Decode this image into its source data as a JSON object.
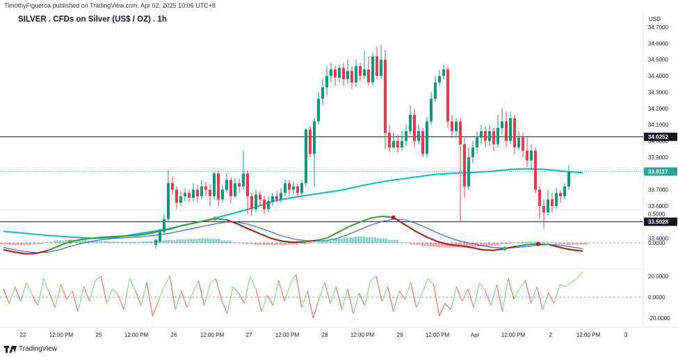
{
  "publisher_line": "TimothyFigueroa published on TradingView.com, Apr 02, 2025 10:06 UTC+8",
  "symbol_title": "SILVER . CFDs on Silver (US$ / OZ) . 1h",
  "brand": "TradingView",
  "colors": {
    "up": "#26a69a",
    "down": "#ef5350",
    "upCandle": "#089981",
    "downCandle": "#f23645",
    "ma": "#00bcd4",
    "macd_fast": "#2f9e2f",
    "macd_signal": "#b71c1c",
    "blue": "#2962ff",
    "osc_up": "#66dd66",
    "osc_down": "#ef5350"
  },
  "chart_data": [
    {
      "type": "candlestick",
      "title": "SILVER . CFDs on Silver (US$ / OZ) . 1h",
      "currency_label": "USD",
      "y_ticks": [
        "34.7000",
        "34.6000",
        "34.5000",
        "34.4000",
        "34.3000",
        "34.2000",
        "34.1000",
        "34.0000",
        "33.9000",
        "33.8000",
        "33.7000",
        "33.6000",
        "33.5000",
        "33.4000"
      ],
      "ylim": [
        33.37,
        34.74
      ],
      "x_ticks": [
        "22",
        "12:00 PM",
        "25",
        "12:00 PM",
        "26",
        "12:00 PM",
        "27",
        "12:00 PM",
        "28",
        "12:00 PM",
        "29",
        "12:00 PM",
        "Apr",
        "12:00 PM",
        "2",
        "12:00 PM",
        "3"
      ],
      "horizontal_lines": [
        {
          "value": 34.0252,
          "label": "34.0252",
          "style": "solid"
        },
        {
          "value": 33.5028,
          "label": "33.5028",
          "style": "solid"
        },
        {
          "value": 33.8117,
          "label": "33.8117",
          "style": "dotted"
        }
      ],
      "candles": [
        [
          33.36,
          33.39,
          33.34,
          33.4
        ],
        [
          33.38,
          33.44,
          33.37,
          33.46
        ],
        [
          33.44,
          33.52,
          33.43,
          33.55
        ],
        [
          33.52,
          33.74,
          33.5,
          33.82
        ],
        [
          33.74,
          33.7,
          33.67,
          33.78
        ],
        [
          33.7,
          33.62,
          33.58,
          33.72
        ],
        [
          33.62,
          33.66,
          33.6,
          33.69
        ],
        [
          33.66,
          33.68,
          33.63,
          33.71
        ],
        [
          33.68,
          33.65,
          33.62,
          33.7
        ],
        [
          33.65,
          33.7,
          33.63,
          33.74
        ],
        [
          33.7,
          33.66,
          33.62,
          33.73
        ],
        [
          33.66,
          33.72,
          33.64,
          33.76
        ],
        [
          33.72,
          33.7,
          33.66,
          33.75
        ],
        [
          33.7,
          33.66,
          33.6,
          33.73
        ],
        [
          33.66,
          33.8,
          33.64,
          33.81
        ],
        [
          33.8,
          33.64,
          33.6,
          33.82
        ],
        [
          33.64,
          33.7,
          33.62,
          33.73
        ],
        [
          33.7,
          33.76,
          33.68,
          33.8
        ],
        [
          33.76,
          33.66,
          33.62,
          33.78
        ],
        [
          33.66,
          33.74,
          33.65,
          33.77
        ],
        [
          33.74,
          33.72,
          33.68,
          33.77
        ],
        [
          33.72,
          33.8,
          33.7,
          33.94
        ],
        [
          33.8,
          33.66,
          33.55,
          33.82
        ],
        [
          33.66,
          33.58,
          33.54,
          33.68
        ],
        [
          33.58,
          33.67,
          33.56,
          33.7
        ],
        [
          33.67,
          33.64,
          33.6,
          33.69
        ],
        [
          33.64,
          33.58,
          33.55,
          33.66
        ],
        [
          33.58,
          33.63,
          33.56,
          33.66
        ],
        [
          33.63,
          33.66,
          33.6,
          33.68
        ],
        [
          33.66,
          33.64,
          33.62,
          33.69
        ],
        [
          33.64,
          33.68,
          33.62,
          33.71
        ],
        [
          33.68,
          33.74,
          33.66,
          33.76
        ],
        [
          33.74,
          33.7,
          33.66,
          33.76
        ],
        [
          33.7,
          33.72,
          33.67,
          33.75
        ],
        [
          33.72,
          33.68,
          33.65,
          33.74
        ],
        [
          33.68,
          33.74,
          33.66,
          33.76
        ],
        [
          33.74,
          34.07,
          33.72,
          34.08
        ],
        [
          34.07,
          33.92,
          33.9,
          34.09
        ],
        [
          33.92,
          34.12,
          33.72,
          34.14
        ],
        [
          34.12,
          34.26,
          34.1,
          34.3
        ],
        [
          34.26,
          34.33,
          34.22,
          34.38
        ],
        [
          34.33,
          34.4,
          34.28,
          34.46
        ],
        [
          34.4,
          34.44,
          34.36,
          34.48
        ],
        [
          34.44,
          34.39,
          34.34,
          34.46
        ],
        [
          34.39,
          34.45,
          34.36,
          34.47
        ],
        [
          34.45,
          34.38,
          34.34,
          34.48
        ],
        [
          34.38,
          34.43,
          34.35,
          34.5
        ],
        [
          34.43,
          34.36,
          34.32,
          34.46
        ],
        [
          34.36,
          34.46,
          34.33,
          34.5
        ],
        [
          34.46,
          34.4,
          34.37,
          34.48
        ],
        [
          34.4,
          34.44,
          34.38,
          34.56
        ],
        [
          34.44,
          34.36,
          34.34,
          34.52
        ],
        [
          34.36,
          34.52,
          34.34,
          34.54
        ],
        [
          34.52,
          34.4,
          34.38,
          34.58
        ],
        [
          34.4,
          34.5,
          34.38,
          34.59
        ],
        [
          34.5,
          34.05,
          33.95,
          34.56
        ],
        [
          34.05,
          33.96,
          33.93,
          34.1
        ],
        [
          33.96,
          34.0,
          33.95,
          34.05
        ],
        [
          34.0,
          33.96,
          33.93,
          34.04
        ],
        [
          33.96,
          34.0,
          33.94,
          34.06
        ],
        [
          34.0,
          34.06,
          33.97,
          34.1
        ],
        [
          34.06,
          34.16,
          34.04,
          34.22
        ],
        [
          34.16,
          34.0,
          33.96,
          34.2
        ],
        [
          34.0,
          34.06,
          33.98,
          34.1
        ],
        [
          34.06,
          33.92,
          33.9,
          34.08
        ],
        [
          33.92,
          34.12,
          33.9,
          34.15
        ],
        [
          34.12,
          34.26,
          34.1,
          34.3
        ],
        [
          34.26,
          34.36,
          34.24,
          34.4
        ],
        [
          34.36,
          34.4,
          34.34,
          34.44
        ],
        [
          34.4,
          34.44,
          34.38,
          34.47
        ],
        [
          34.44,
          34.12,
          34.08,
          34.46
        ],
        [
          34.12,
          34.06,
          34.02,
          34.16
        ],
        [
          34.06,
          34.12,
          34.03,
          34.14
        ],
        [
          34.12,
          33.98,
          33.5,
          34.14
        ],
        [
          33.98,
          33.72,
          33.65,
          34.02
        ],
        [
          33.72,
          33.9,
          33.7,
          33.96
        ],
        [
          33.9,
          33.96,
          33.86,
          34.0
        ],
        [
          33.96,
          34.02,
          33.92,
          34.06
        ],
        [
          34.02,
          34.06,
          33.98,
          34.1
        ],
        [
          34.06,
          34.0,
          33.96,
          34.09
        ],
        [
          34.0,
          34.06,
          33.97,
          34.1
        ],
        [
          34.06,
          33.98,
          33.94,
          34.08
        ],
        [
          33.98,
          34.08,
          33.96,
          34.16
        ],
        [
          34.08,
          34.12,
          34.04,
          34.2
        ],
        [
          34.12,
          34.0,
          33.96,
          34.18
        ],
        [
          34.0,
          34.14,
          33.98,
          34.18
        ],
        [
          34.14,
          33.96,
          33.92,
          34.16
        ],
        [
          33.96,
          34.02,
          33.94,
          34.06
        ],
        [
          34.02,
          33.94,
          33.9,
          34.05
        ],
        [
          33.94,
          33.88,
          33.84,
          34.02
        ],
        [
          33.88,
          33.94,
          33.82,
          33.98
        ],
        [
          33.94,
          33.7,
          33.68,
          33.96
        ],
        [
          33.7,
          33.6,
          33.52,
          33.72
        ],
        [
          33.6,
          33.56,
          33.46,
          33.64
        ],
        [
          33.56,
          33.64,
          33.54,
          33.7
        ],
        [
          33.64,
          33.6,
          33.56,
          33.68
        ],
        [
          33.6,
          33.68,
          33.58,
          33.71
        ],
        [
          33.68,
          33.66,
          33.62,
          33.7
        ],
        [
          33.66,
          33.72,
          33.64,
          33.74
        ],
        [
          33.72,
          33.81,
          33.7,
          33.85
        ]
      ],
      "ma": [
        [
          0,
          33.444
        ],
        [
          10,
          33.418
        ],
        [
          20,
          33.4
        ],
        [
          25,
          33.408
        ],
        [
          30,
          33.43
        ],
        [
          36,
          33.457
        ],
        [
          40,
          33.482
        ],
        [
          45,
          33.512
        ],
        [
          50,
          33.549
        ],
        [
          55,
          33.587
        ],
        [
          60,
          33.632
        ],
        [
          65,
          33.657
        ],
        [
          70,
          33.678
        ],
        [
          75,
          33.699
        ],
        [
          80,
          33.73
        ],
        [
          85,
          33.755
        ],
        [
          90,
          33.774
        ],
        [
          95,
          33.793
        ],
        [
          100,
          33.802
        ],
        [
          104,
          33.806
        ],
        [
          108,
          33.814
        ],
        [
          112,
          33.825
        ],
        [
          116,
          33.829
        ],
        [
          120,
          33.824
        ],
        [
          124,
          33.813
        ],
        [
          128,
          33.804
        ]
      ]
    },
    {
      "type": "macd",
      "y_ticks": [
        "0.5000",
        "0.0000"
      ],
      "ylim": [
        -0.25,
        0.55
      ],
      "fast": [
        -0.12,
        -0.16,
        -0.19,
        -0.18,
        -0.13,
        -0.05,
        0.02,
        0.06,
        0.08,
        0.1,
        0.11,
        0.12,
        0.13,
        0.16,
        0.2,
        0.24,
        0.3,
        0.34,
        0.38,
        0.42,
        0.4,
        0.33,
        0.24,
        0.16,
        0.08,
        0.03,
        0.01,
        0.02,
        0.04,
        0.08,
        0.18,
        0.28,
        0.36,
        0.43,
        0.46,
        0.44,
        0.32,
        0.2,
        0.1,
        0.02,
        -0.03,
        -0.05,
        -0.08,
        -0.12,
        -0.13,
        -0.1,
        -0.06,
        -0.03,
        -0.02,
        -0.03,
        -0.08,
        -0.12,
        -0.14
      ],
      "signal": [
        -0.08,
        -0.12,
        -0.15,
        -0.17,
        -0.16,
        -0.12,
        -0.06,
        -0.01,
        0.03,
        0.06,
        0.08,
        0.09,
        0.1,
        0.12,
        0.14,
        0.17,
        0.21,
        0.25,
        0.29,
        0.33,
        0.36,
        0.36,
        0.32,
        0.26,
        0.19,
        0.12,
        0.07,
        0.04,
        0.03,
        0.04,
        0.08,
        0.15,
        0.23,
        0.31,
        0.37,
        0.41,
        0.4,
        0.34,
        0.26,
        0.17,
        0.09,
        0.03,
        -0.01,
        -0.05,
        -0.08,
        -0.09,
        -0.08,
        -0.06,
        -0.04,
        -0.03,
        -0.04,
        -0.07,
        -0.1
      ],
      "histogram": [
        -0.03,
        -0.04,
        -0.04,
        -0.02,
        0.01,
        0.04,
        0.05,
        0.05,
        0.04,
        0.03,
        0.02,
        0.02,
        0.02,
        0.03,
        0.04,
        0.05,
        0.06,
        0.07,
        0.08,
        0.07,
        0.04,
        0.01,
        -0.02,
        -0.04,
        -0.04,
        -0.04,
        -0.03,
        -0.01,
        0.01,
        0.04,
        0.07,
        0.09,
        0.11,
        0.1,
        0.08,
        0.05,
        0.01,
        -0.03,
        -0.06,
        -0.07,
        -0.08,
        -0.08,
        -0.07,
        -0.06,
        -0.05,
        -0.02,
        0.01,
        0.02,
        0.02,
        0.01,
        -0.02,
        -0.03,
        -0.03
      ],
      "cross_points": [
        6,
        19,
        27,
        35,
        45,
        48
      ]
    },
    {
      "type": "line",
      "y_ticks": [
        "20.0000",
        "0.0000",
        "-20.0000"
      ],
      "ylim": [
        -26,
        26
      ],
      "values": [
        8,
        -6,
        10,
        -4,
        14,
        2,
        -8,
        18,
        4,
        -10,
        12,
        -2,
        6,
        -14,
        10,
        -4,
        16,
        20,
        -6,
        8,
        2,
        -12,
        18,
        6,
        -8,
        14,
        -18,
        -4,
        10,
        20,
        -12,
        6,
        -10,
        4,
        16,
        -8,
        12,
        18,
        -2,
        -16,
        10,
        4,
        -6,
        20,
        8,
        -14,
        2,
        -8,
        16,
        -4,
        12,
        22,
        -10,
        6,
        -20,
        -2,
        14,
        -6,
        10,
        -12,
        8,
        -16,
        4,
        -8,
        16,
        20,
        -4,
        10,
        -14,
        6,
        -2,
        14,
        -10,
        4,
        18,
        12,
        -18,
        -6,
        -12,
        10,
        -4,
        8,
        -10,
        14,
        6,
        -8,
        12,
        -14,
        18,
        -2,
        8,
        16,
        -6,
        10,
        -12,
        4,
        -6,
        12,
        10,
        14,
        18,
        24
      ],
      "threshold_lines": [
        20,
        0,
        -20
      ]
    }
  ]
}
